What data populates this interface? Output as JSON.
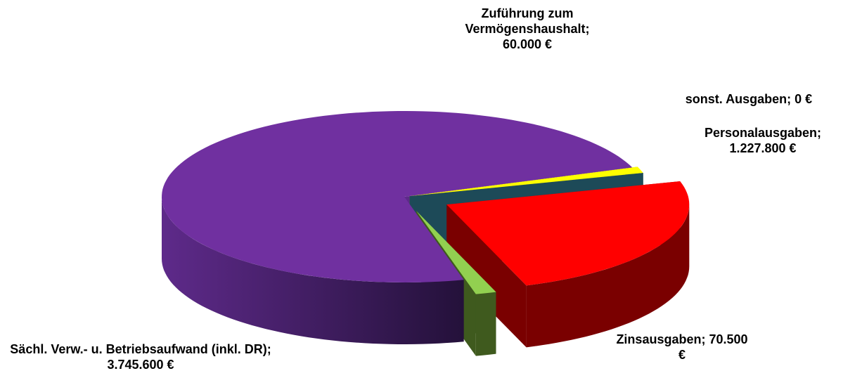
{
  "chart_data": {
    "type": "pie3d",
    "categories": [
      "Zuführung zum Vermögenshaushalt;",
      "sonst. Ausgaben;",
      "Personalausgaben;",
      "Zinsausgaben;",
      "Sächl. Verw.- u. Betriebsaufwand (inkl. DR);"
    ],
    "values": [
      60000,
      0,
      1227800,
      70500,
      3745600
    ],
    "value_labels": [
      "60.000 €",
      "0 €",
      "1.227.800 €",
      "70.500 €",
      "3.745.600 €"
    ],
    "colors": [
      "#ffff00",
      "#2f6f84",
      "#ff0000",
      "#92d050",
      "#7030a0"
    ],
    "side_colors": [
      "#b3b300",
      "#1d4a58",
      "#7a0000",
      "#3f5a1e",
      "#4a1f6b"
    ]
  }
}
